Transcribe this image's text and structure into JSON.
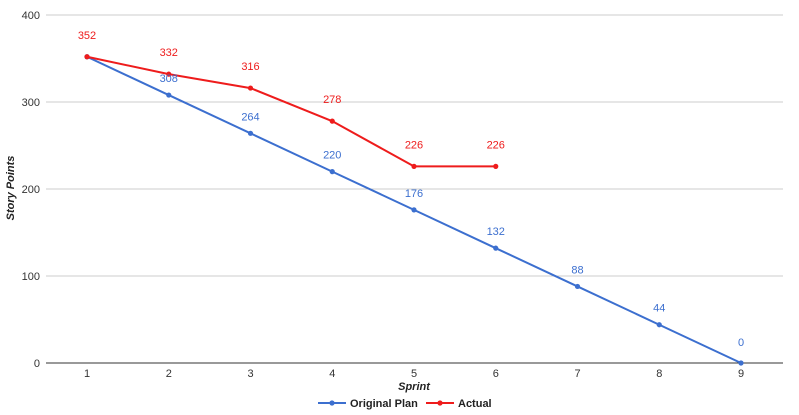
{
  "chart_data": {
    "type": "line",
    "title": "",
    "xlabel": "Sprint",
    "ylabel": "Story Points",
    "categories": [
      "1",
      "2",
      "3",
      "4",
      "5",
      "6",
      "7",
      "8",
      "9"
    ],
    "ylim": [
      0,
      400
    ],
    "yticks": [
      0,
      100,
      200,
      300,
      400
    ],
    "grid": true,
    "legend_position": "bottom",
    "series": [
      {
        "name": "Original Plan",
        "color": "#3c6fcf",
        "values": [
          352,
          308,
          264,
          220,
          176,
          132,
          88,
          44,
          0
        ],
        "labels": [
          "",
          "308",
          "264",
          "220",
          "176",
          "132",
          "88",
          "44",
          "0"
        ]
      },
      {
        "name": "Actual",
        "color": "#ee1c1c",
        "values": [
          352,
          332,
          316,
          278,
          226,
          226,
          null,
          null,
          null
        ],
        "labels": [
          "352",
          "332",
          "316",
          "278",
          "226",
          "226",
          "",
          "",
          ""
        ]
      }
    ]
  }
}
